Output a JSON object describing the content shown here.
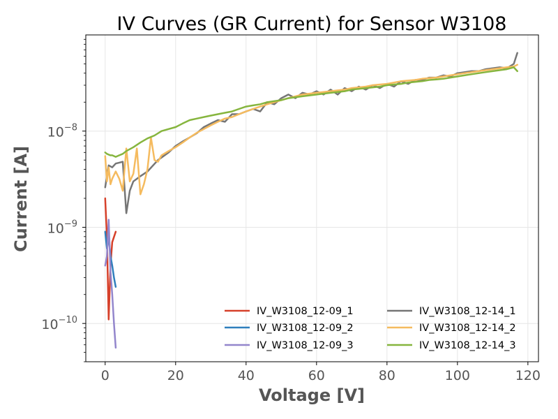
{
  "chart_data": {
    "type": "line",
    "title": "IV Curves (GR Current) for Sensor W3108",
    "xlabel": "Voltage [V]",
    "ylabel": "Current [A]",
    "xscale": "linear",
    "yscale": "log",
    "xlim": [
      -5.5,
      123
    ],
    "ylim": [
      4e-11,
      1e-07
    ],
    "x_ticks": [
      {
        "value": 0,
        "label": "0"
      },
      {
        "value": 20,
        "label": "20"
      },
      {
        "value": 40,
        "label": "40"
      },
      {
        "value": 60,
        "label": "60"
      },
      {
        "value": 80,
        "label": "80"
      },
      {
        "value": 100,
        "label": "100"
      },
      {
        "value": 120,
        "label": "120"
      }
    ],
    "y_ticks": [
      {
        "value": 1e-10,
        "base": "10",
        "exp": "−10"
      },
      {
        "value": 1e-09,
        "base": "10",
        "exp": "−9"
      },
      {
        "value": 1e-08,
        "base": "10",
        "exp": "−8"
      }
    ],
    "grid": true,
    "legend_position": "lower-right",
    "legend_columns": 2,
    "series": [
      {
        "name": "IV_W3108_12-09_1",
        "color": "#d6402a",
        "x": [
          0,
          0.5,
          1,
          1.5,
          2,
          3
        ],
        "y": [
          2e-09,
          8e-10,
          1.1e-10,
          4e-10,
          7e-10,
          9e-10
        ]
      },
      {
        "name": "IV_W3108_12-09_2",
        "color": "#2f7fbd",
        "x": [
          0,
          0.5,
          1,
          1.5,
          2,
          2.5,
          3
        ],
        "y": [
          9e-10,
          6e-10,
          8e-10,
          5e-10,
          4e-10,
          3e-10,
          2.4e-10
        ]
      },
      {
        "name": "IV_W3108_12-09_3",
        "color": "#9386cc",
        "x": [
          0,
          0.5,
          1,
          1.5,
          2,
          2.5,
          3
        ],
        "y": [
          4e-10,
          5e-10,
          1.2e-09,
          3.5e-10,
          2e-10,
          1e-10,
          5.6e-11
        ]
      },
      {
        "name": "IV_W3108_12-14_1",
        "color": "#767676",
        "x": [
          0,
          1,
          2,
          3,
          4,
          5,
          6,
          7,
          8,
          10,
          12,
          15,
          18,
          20,
          22,
          24,
          26,
          28,
          30,
          32,
          34,
          36,
          38,
          40,
          42,
          44,
          46,
          48,
          50,
          52,
          54,
          56,
          58,
          60,
          62,
          64,
          66,
          68,
          70,
          72,
          74,
          76,
          78,
          80,
          82,
          84,
          86,
          88,
          90,
          92,
          94,
          96,
          98,
          100,
          102,
          104,
          106,
          108,
          110,
          112,
          114,
          116,
          117
        ],
        "y": [
          2.6e-09,
          4.4e-09,
          4.2e-09,
          4.6e-09,
          4.7e-09,
          4.8e-09,
          1.4e-09,
          2.4e-09,
          3e-09,
          3.4e-09,
          3.8e-09,
          5e-09,
          6e-09,
          7e-09,
          7.8e-09,
          8.6e-09,
          9.5e-09,
          1.1e-08,
          1.2e-08,
          1.3e-08,
          1.25e-08,
          1.5e-08,
          1.5e-08,
          1.6e-08,
          1.7e-08,
          1.6e-08,
          2e-08,
          1.9e-08,
          2.2e-08,
          2.4e-08,
          2.2e-08,
          2.5e-08,
          2.4e-08,
          2.6e-08,
          2.4e-08,
          2.7e-08,
          2.4e-08,
          2.8e-08,
          2.6e-08,
          2.9e-08,
          2.7e-08,
          3e-08,
          2.8e-08,
          3.1e-08,
          2.9e-08,
          3.3e-08,
          3.1e-08,
          3.4e-08,
          3.4e-08,
          3.6e-08,
          3.6e-08,
          3.8e-08,
          3.7e-08,
          4e-08,
          4.1e-08,
          4.2e-08,
          4.2e-08,
          4.4e-08,
          4.5e-08,
          4.6e-08,
          4.5e-08,
          5e-08,
          6.5e-08
        ]
      },
      {
        "name": "IV_W3108_12-14_2",
        "color": "#f5bb5f",
        "x": [
          0,
          0.5,
          1,
          1.5,
          2,
          3,
          4,
          5,
          6,
          7,
          8,
          9,
          10,
          11,
          12,
          13,
          14,
          15,
          16,
          18,
          20,
          22,
          24,
          26,
          28,
          30,
          32,
          34,
          36,
          38,
          40,
          42,
          44,
          46,
          48,
          50,
          52,
          54,
          56,
          58,
          60,
          62,
          64,
          66,
          68,
          70,
          72,
          74,
          76,
          78,
          80,
          82,
          84,
          86,
          88,
          90,
          92,
          94,
          96,
          98,
          100,
          102,
          104,
          106,
          108,
          110,
          112,
          114,
          116,
          117
        ],
        "y": [
          5.5e-09,
          3e-09,
          4.2e-09,
          2.8e-09,
          3.2e-09,
          3.8e-09,
          3.2e-09,
          2.4e-09,
          6.6e-09,
          3e-09,
          3.6e-09,
          6.6e-09,
          2.2e-09,
          2.8e-09,
          4e-09,
          8.6e-09,
          5e-09,
          4.8e-09,
          5.6e-09,
          6.2e-09,
          6.8e-09,
          7.6e-09,
          8.6e-09,
          9.6e-09,
          1.05e-08,
          1.15e-08,
          1.25e-08,
          1.35e-08,
          1.4e-08,
          1.5e-08,
          1.6e-08,
          1.7e-08,
          1.8e-08,
          1.9e-08,
          2e-08,
          2.1e-08,
          2.2e-08,
          2.3e-08,
          2.4e-08,
          2.45e-08,
          2.5e-08,
          2.55e-08,
          2.6e-08,
          2.65e-08,
          2.7e-08,
          2.8e-08,
          2.85e-08,
          2.9e-08,
          3e-08,
          3.05e-08,
          3.1e-08,
          3.2e-08,
          3.3e-08,
          3.35e-08,
          3.4e-08,
          3.5e-08,
          3.55e-08,
          3.6e-08,
          3.7e-08,
          3.8e-08,
          3.9e-08,
          4e-08,
          4.1e-08,
          4.2e-08,
          4.3e-08,
          4.4e-08,
          4.5e-08,
          4.6e-08,
          4.7e-08,
          4.9e-08
        ]
      },
      {
        "name": "IV_W3108_12-14_3",
        "color": "#86b53e",
        "x": [
          0,
          0.5,
          1,
          1.5,
          2,
          3,
          4,
          5,
          6,
          8,
          10,
          12,
          14,
          16,
          18,
          20,
          22,
          24,
          26,
          28,
          30,
          32,
          34,
          36,
          38,
          40,
          42,
          44,
          46,
          48,
          50,
          52,
          54,
          56,
          58,
          60,
          62,
          64,
          66,
          68,
          70,
          72,
          74,
          76,
          78,
          80,
          82,
          84,
          86,
          88,
          90,
          92,
          94,
          96,
          98,
          100,
          102,
          104,
          106,
          108,
          110,
          112,
          114,
          116,
          117
        ],
        "y": [
          6e-09,
          5.8e-09,
          5.7e-09,
          5.6e-09,
          5.6e-09,
          5.4e-09,
          5.6e-09,
          5.8e-09,
          6.2e-09,
          6.8e-09,
          7.6e-09,
          8.4e-09,
          9e-09,
          1e-08,
          1.05e-08,
          1.1e-08,
          1.2e-08,
          1.3e-08,
          1.35e-08,
          1.4e-08,
          1.45e-08,
          1.5e-08,
          1.55e-08,
          1.6e-08,
          1.7e-08,
          1.8e-08,
          1.85e-08,
          1.9e-08,
          2e-08,
          2.05e-08,
          2.1e-08,
          2.2e-08,
          2.25e-08,
          2.3e-08,
          2.35e-08,
          2.4e-08,
          2.45e-08,
          2.5e-08,
          2.55e-08,
          2.6e-08,
          2.7e-08,
          2.75e-08,
          2.8e-08,
          2.85e-08,
          2.9e-08,
          3e-08,
          3.05e-08,
          3.1e-08,
          3.2e-08,
          3.25e-08,
          3.3e-08,
          3.4e-08,
          3.45e-08,
          3.5e-08,
          3.6e-08,
          3.7e-08,
          3.8e-08,
          3.9e-08,
          4e-08,
          4.1e-08,
          4.2e-08,
          4.3e-08,
          4.4e-08,
          4.6e-08,
          4.2e-08
        ]
      }
    ]
  }
}
